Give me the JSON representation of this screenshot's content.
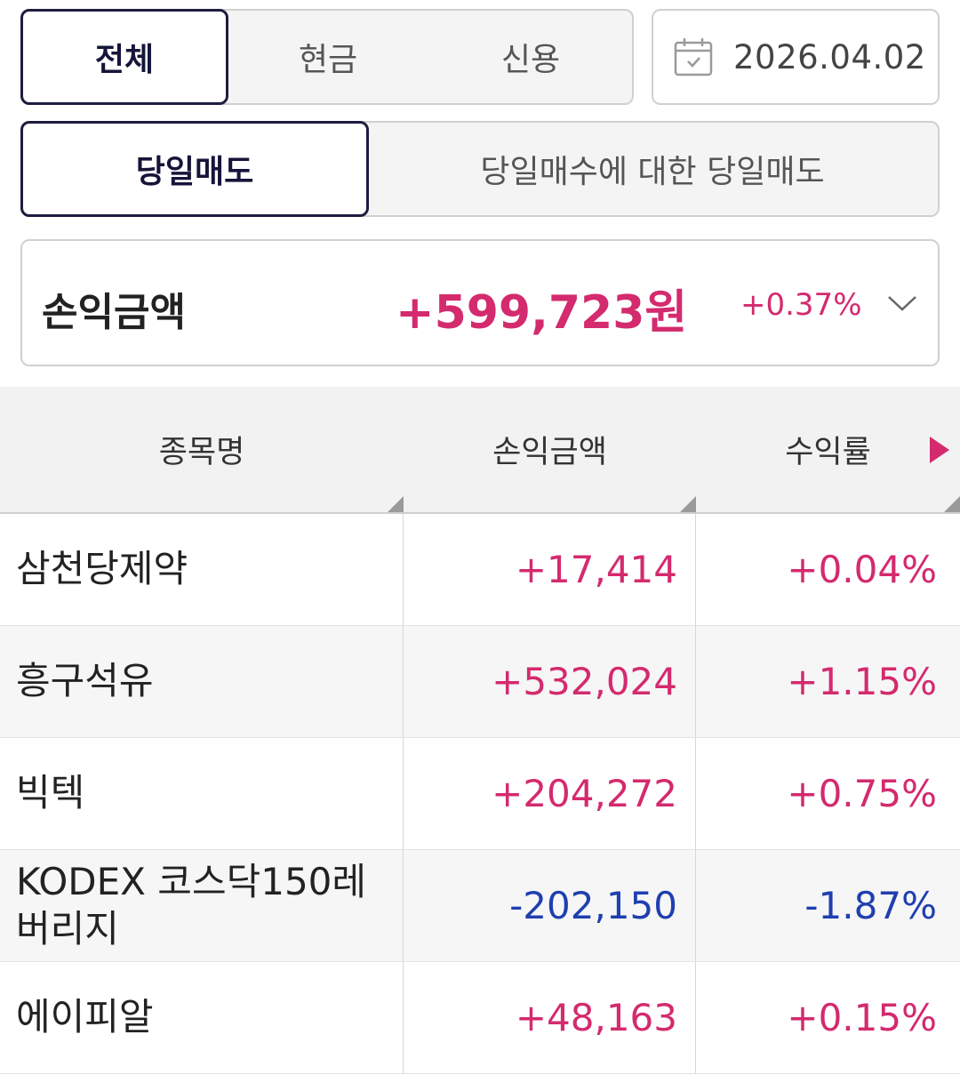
{
  "filters": {
    "account_type": {
      "options": [
        "전체",
        "현금",
        "신용"
      ],
      "selected": "전체"
    },
    "date": "2026.04.02",
    "sell_type": {
      "options": [
        "당일매도",
        "당일매수에 대한 당일매도"
      ],
      "selected": "당일매도"
    }
  },
  "summary": {
    "label": "손익금액",
    "amount": "+599,723원",
    "rate": "+0.37%"
  },
  "table": {
    "headers": [
      "종목명",
      "손익금액",
      "수익률"
    ],
    "rows": [
      {
        "name": "삼천당제약",
        "amount": "+17,414",
        "rate": "+0.04%",
        "sign": "pos"
      },
      {
        "name": "흥구석유",
        "amount": "+532,024",
        "rate": "+1.15%",
        "sign": "pos"
      },
      {
        "name": "빅텍",
        "amount": "+204,272",
        "rate": "+0.75%",
        "sign": "pos"
      },
      {
        "name": "KODEX 코스닥150레\n버리지",
        "amount": "-202,150",
        "rate": "-1.87%",
        "sign": "neg"
      },
      {
        "name": "에이피알",
        "amount": "+48,163",
        "rate": "+0.15%",
        "sign": "pos"
      }
    ]
  },
  "colors": {
    "positive": "#d42a6e",
    "negative": "#1f3fb0",
    "active_border": "#1d1d3f"
  },
  "icons": {
    "date": "calendar-icon",
    "expand": "chevron-down-icon",
    "scroll": "play-right-icon"
  }
}
